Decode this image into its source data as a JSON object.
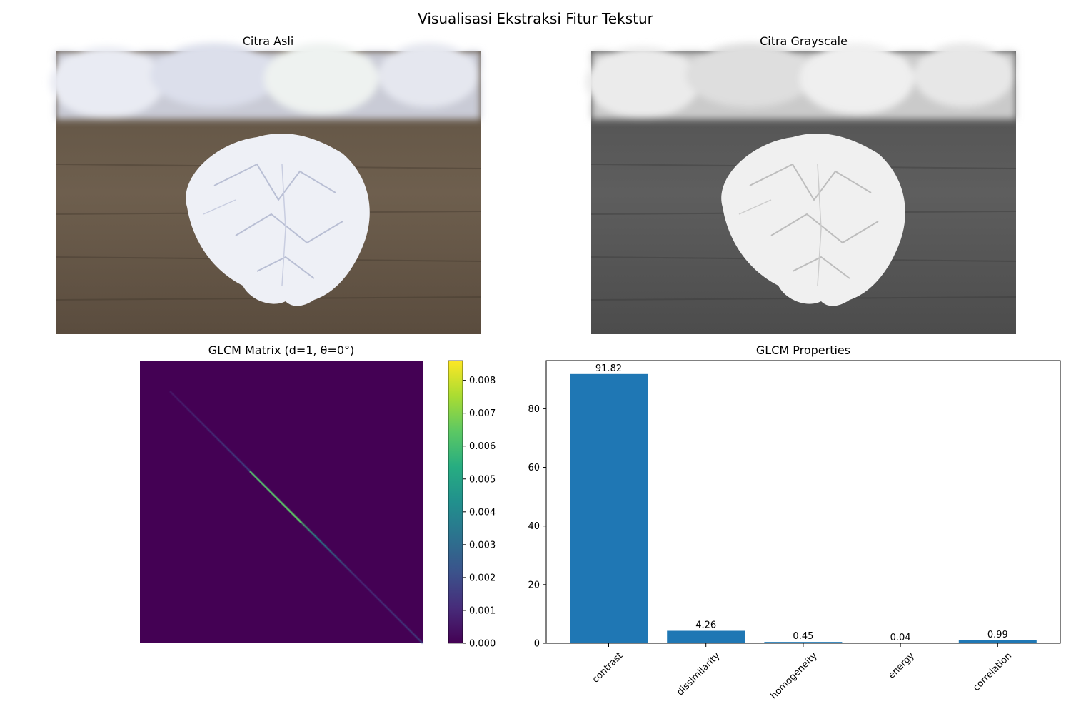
{
  "figure": {
    "suptitle": "Visualisasi Ekstraksi Fitur Tekstur"
  },
  "panels": {
    "original": {
      "title": "Citra Asli"
    },
    "grayscale": {
      "title": "Citra Grayscale"
    },
    "glcm": {
      "title": "GLCM Matrix (d=1, θ=0°)",
      "colorbar_ticks": [
        "0.000",
        "0.001",
        "0.002",
        "0.003",
        "0.004",
        "0.005",
        "0.006",
        "0.007",
        "0.008"
      ],
      "colorbar_max": 0.0086,
      "colormap": [
        "#440154",
        "#472c7a",
        "#3b528b",
        "#2c728e",
        "#21908d",
        "#27ad81",
        "#5cc863",
        "#aadc32",
        "#fde725"
      ]
    },
    "properties": {
      "title": "GLCM Properties"
    }
  },
  "chart_data": [
    {
      "type": "heatmap",
      "title": "GLCM Matrix (d=1, θ=0°)",
      "description_of_values": "near-zero everywhere except a thin bright diagonal peaking in the middle",
      "colorbar_range": [
        0,
        0.0086
      ],
      "colorbar_ticks": [
        0,
        0.001,
        0.002,
        0.003,
        0.004,
        0.005,
        0.006,
        0.007,
        0.008
      ]
    },
    {
      "type": "bar",
      "title": "GLCM Properties",
      "categories": [
        "contrast",
        "dissimilarity",
        "homogeneity",
        "energy",
        "correlation"
      ],
      "values": [
        91.82,
        4.26,
        0.45,
        0.04,
        0.99
      ],
      "value_labels": [
        "91.82",
        "4.26",
        "0.45",
        "0.04",
        "0.99"
      ],
      "yticks": [
        0,
        20,
        40,
        60,
        80
      ],
      "ylim": [
        0,
        96.4
      ],
      "color": "#1f77b4"
    }
  ]
}
